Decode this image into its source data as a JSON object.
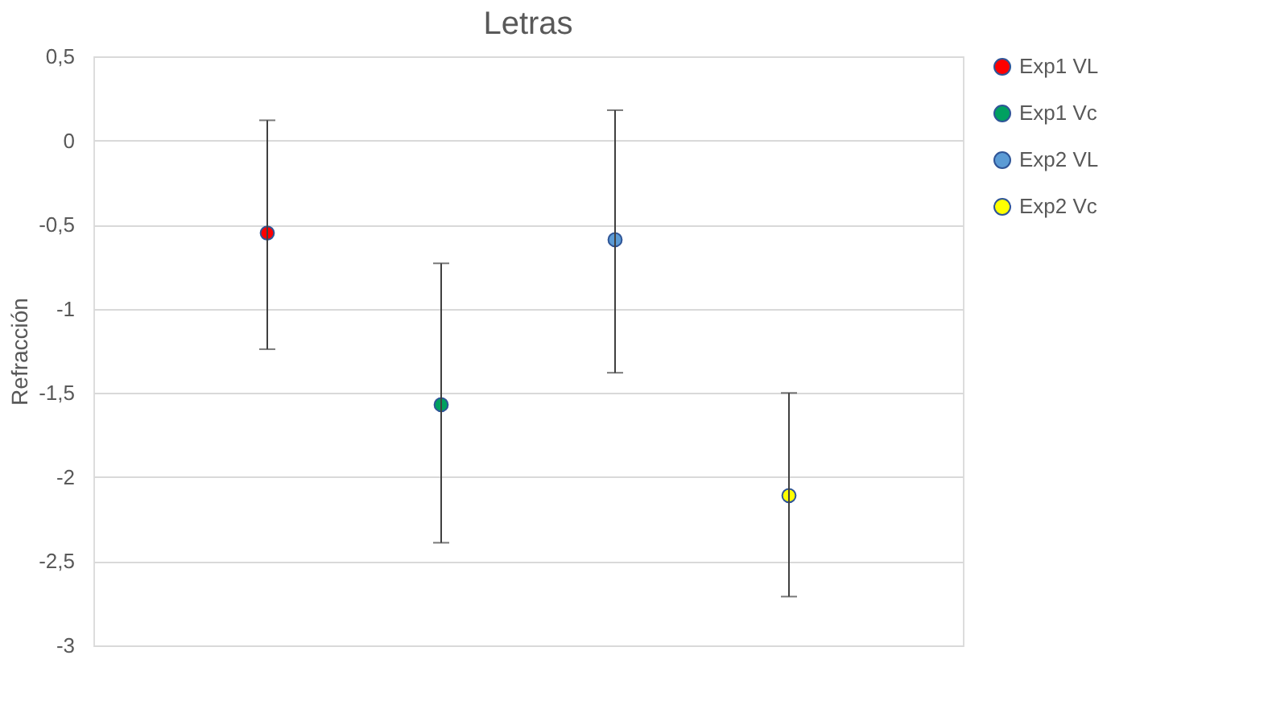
{
  "chart_data": {
    "type": "scatter",
    "title": "Letras",
    "ylabel": "Refracción",
    "categories": [
      null,
      null,
      null,
      null
    ],
    "series": [
      {
        "name": "Exp1 VL",
        "color": "#ff0000",
        "values": [
          -0.55,
          null,
          null,
          null
        ],
        "errors": [
          [
            -1.24,
            0.12
          ],
          null,
          null,
          null
        ]
      },
      {
        "name": "Exp1 Vc",
        "color": "#00a060",
        "values": [
          null,
          -1.57,
          null,
          null
        ],
        "errors": [
          null,
          [
            -2.39,
            -0.73
          ],
          null,
          null
        ]
      },
      {
        "name": "Exp2 VL",
        "color": "#5b9bd5",
        "values": [
          null,
          null,
          -0.59,
          null
        ],
        "errors": [
          null,
          null,
          [
            -1.38,
            0.18
          ],
          null
        ]
      },
      {
        "name": "Exp2 Vc",
        "color": "#ffff00",
        "values": [
          null,
          null,
          null,
          -2.11
        ],
        "errors": [
          null,
          null,
          null,
          [
            -2.71,
            -1.5
          ]
        ]
      }
    ],
    "ylim": [
      -3,
      0.5
    ],
    "yticks": [
      {
        "value": 0.5,
        "label": "0,5"
      },
      0,
      {
        "value": -0.5,
        "label": "-0,5"
      },
      -1,
      {
        "value": -1.5,
        "label": "-1,5"
      },
      -2,
      {
        "value": -2.5,
        "label": "-2,5"
      },
      -3
    ],
    "grid": "y",
    "legend": "right",
    "marker": "circle",
    "tick_labels": "y"
  }
}
